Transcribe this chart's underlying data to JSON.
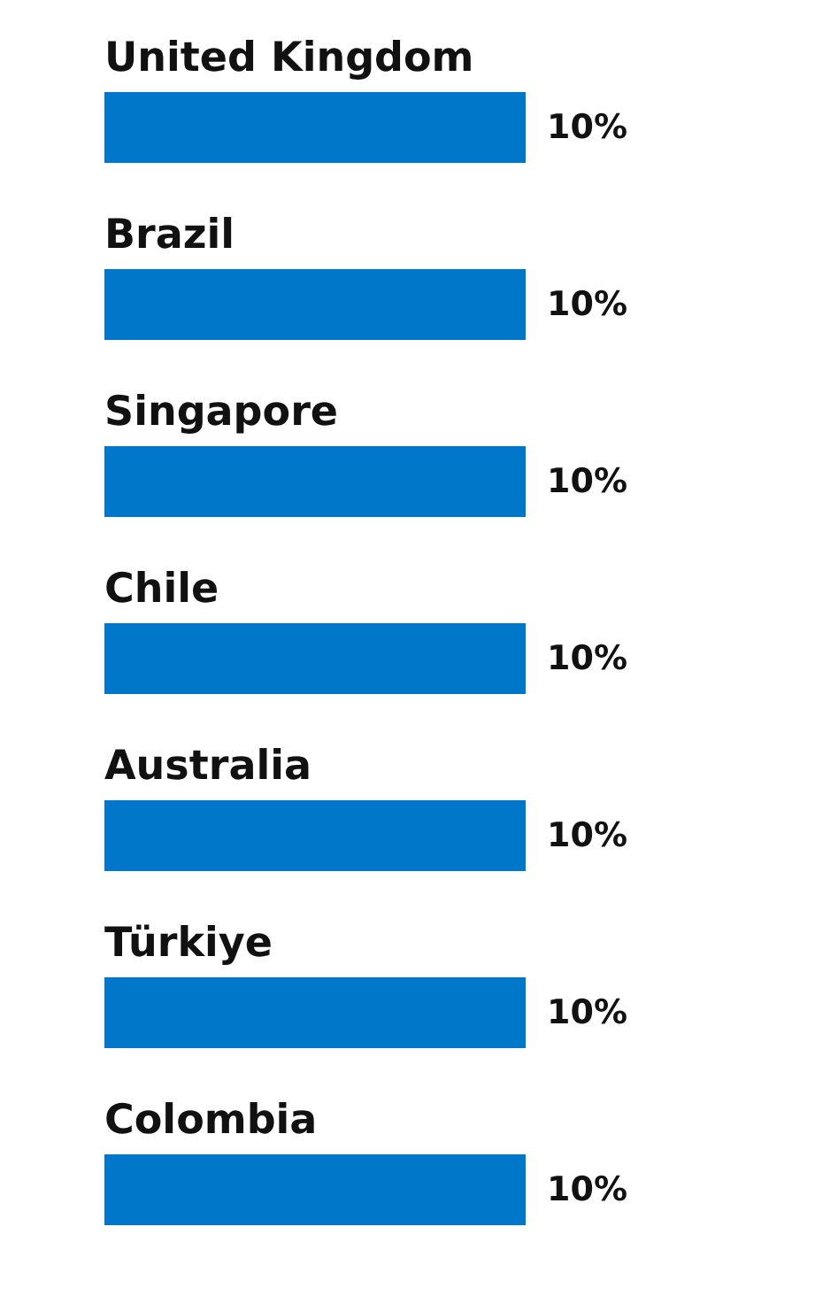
{
  "chart_data": {
    "type": "bar",
    "orientation": "horizontal",
    "categories": [
      "United Kingdom",
      "Brazil",
      "Singapore",
      "Chile",
      "Australia",
      "Türkiye",
      "Colombia"
    ],
    "values": [
      10,
      10,
      10,
      10,
      10,
      10,
      10
    ],
    "value_labels": [
      "10%",
      "10%",
      "10%",
      "10%",
      "10%",
      "10%",
      "10%"
    ],
    "color": "#0077c8"
  }
}
